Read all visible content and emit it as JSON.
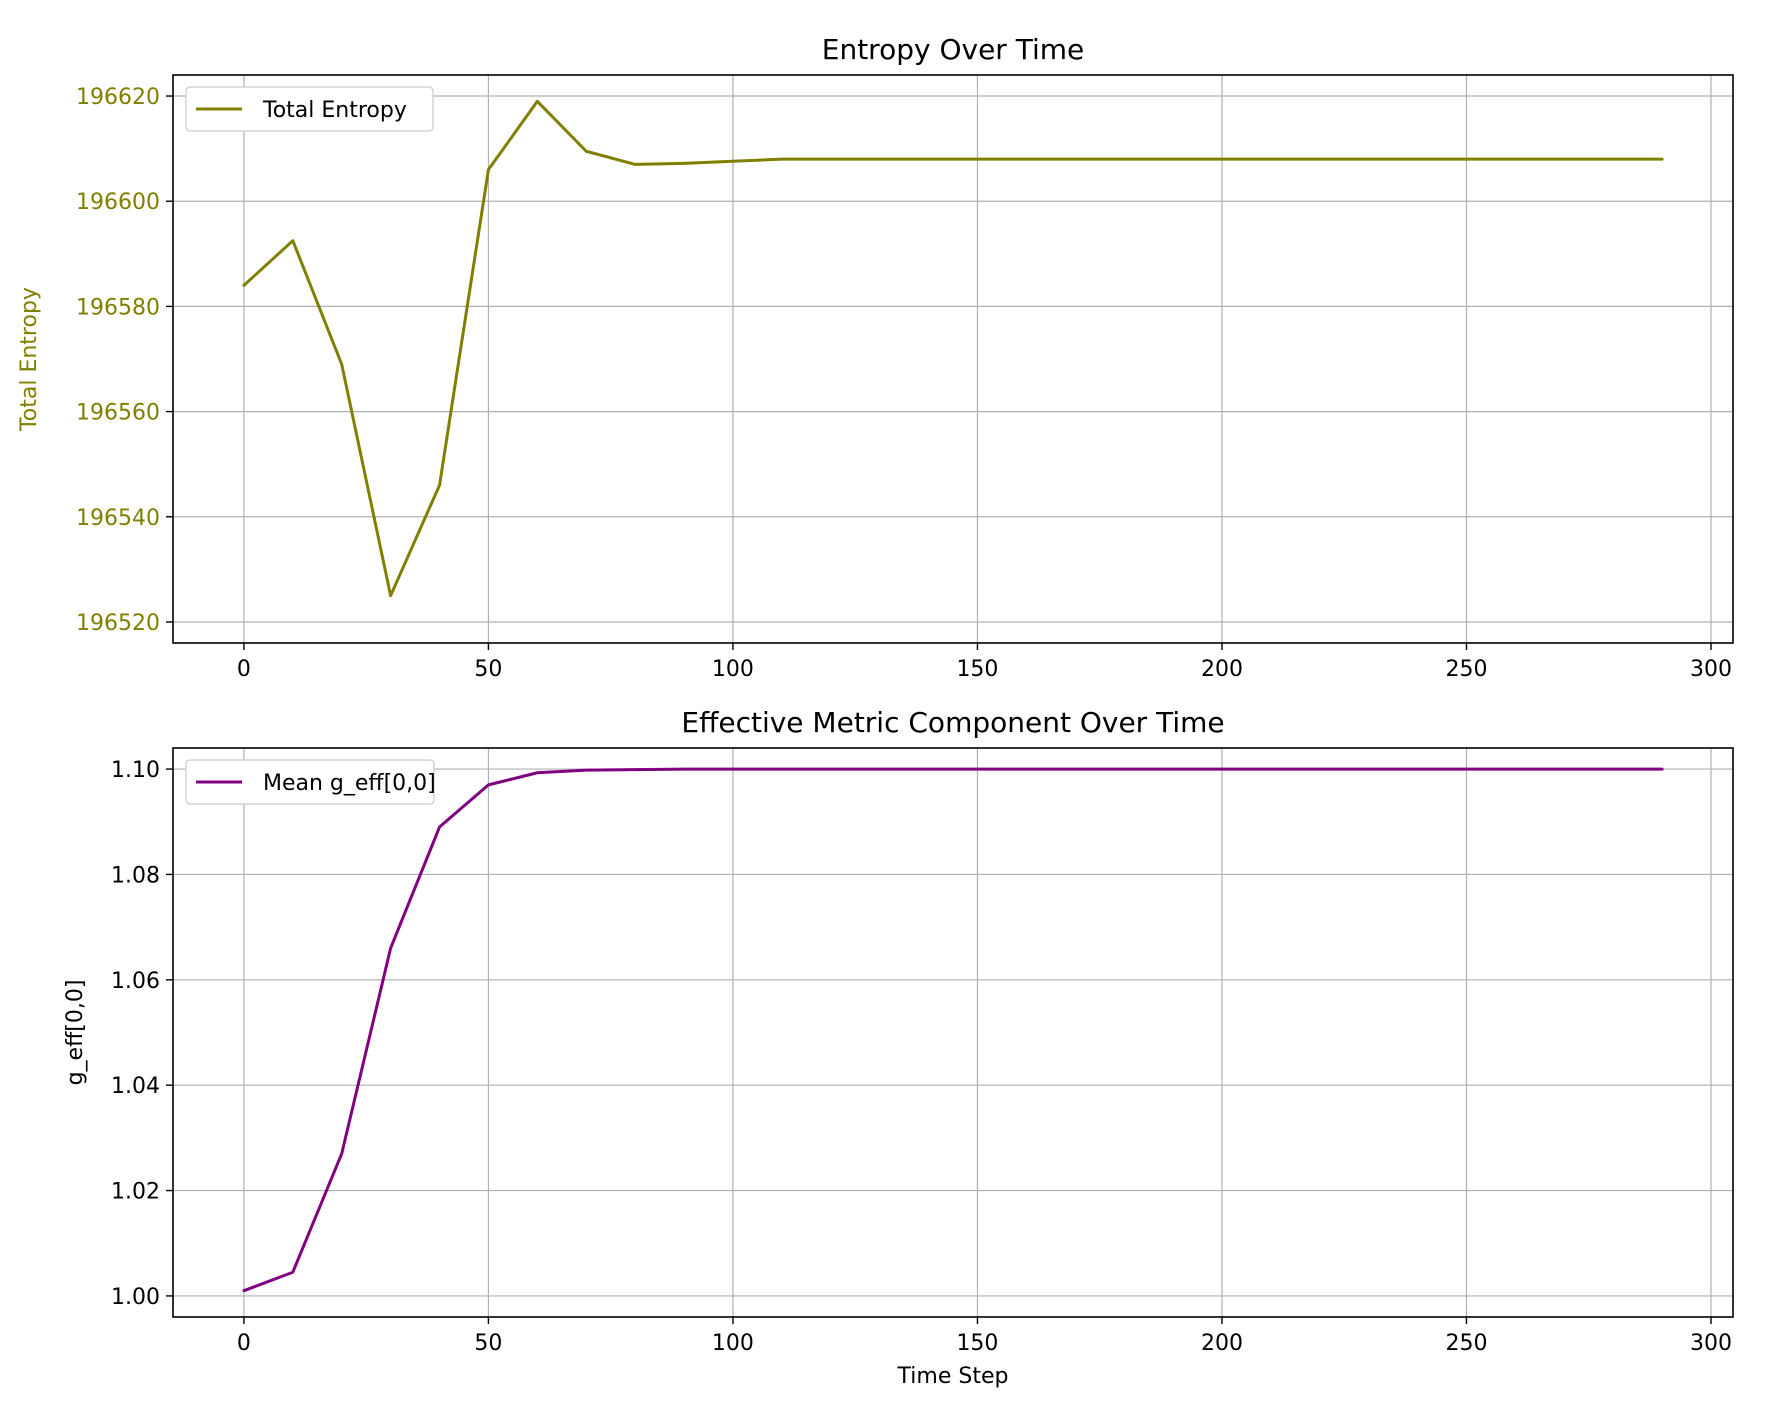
{
  "chart_data": [
    {
      "type": "line",
      "title": "Entropy Over Time",
      "xlabel": "",
      "ylabel": "Total Entropy",
      "xlim": [
        -14.5,
        304.5
      ],
      "ylim": [
        196516,
        196624
      ],
      "xticks": [
        0,
        50,
        100,
        150,
        200,
        250,
        300
      ],
      "xtick_labels": [
        "0",
        "50",
        "100",
        "150",
        "200",
        "250",
        "300"
      ],
      "yticks": [
        196520,
        196540,
        196560,
        196580,
        196600,
        196620
      ],
      "ytick_labels": [
        "196520",
        "196540",
        "196560",
        "196580",
        "196600",
        "196620"
      ],
      "grid": true,
      "legend": "top-left",
      "accent_color": "#808000",
      "series": [
        {
          "name": "Total Entropy",
          "color": "#808000",
          "x": [
            0,
            10,
            20,
            30,
            40,
            50,
            60,
            70,
            80,
            90,
            100,
            110,
            120,
            130,
            140,
            150,
            160,
            170,
            180,
            190,
            200,
            210,
            220,
            230,
            240,
            250,
            260,
            270,
            280,
            290
          ],
          "y": [
            196584,
            196592.5,
            196569,
            196525,
            196546,
            196606,
            196619,
            196609.5,
            196607,
            196607.2,
            196607.6,
            196608,
            196608,
            196608,
            196608,
            196608,
            196608,
            196608,
            196608,
            196608,
            196608,
            196608,
            196608,
            196608,
            196608,
            196608,
            196608,
            196608,
            196608,
            196608
          ]
        }
      ]
    },
    {
      "type": "line",
      "title": "Effective Metric Component Over Time",
      "xlabel": "Time Step",
      "ylabel": "g_eff[0,0]",
      "xlim": [
        -14.5,
        304.5
      ],
      "ylim": [
        0.996,
        1.104
      ],
      "xticks": [
        0,
        50,
        100,
        150,
        200,
        250,
        300
      ],
      "xtick_labels": [
        "0",
        "50",
        "100",
        "150",
        "200",
        "250",
        "300"
      ],
      "yticks": [
        1.0,
        1.02,
        1.04,
        1.06,
        1.08,
        1.1
      ],
      "ytick_labels": [
        "1.00",
        "1.02",
        "1.04",
        "1.06",
        "1.08",
        "1.10"
      ],
      "grid": true,
      "legend": "top-left",
      "series": [
        {
          "name": "Mean g_eff[0,0]",
          "color": "#800080",
          "x": [
            0,
            10,
            20,
            30,
            40,
            50,
            60,
            70,
            80,
            90,
            100,
            110,
            120,
            130,
            140,
            150,
            160,
            170,
            180,
            190,
            200,
            210,
            220,
            230,
            240,
            250,
            260,
            270,
            280,
            290
          ],
          "y": [
            1.001,
            1.0045,
            1.027,
            1.066,
            1.089,
            1.097,
            1.0993,
            1.0998,
            1.0999,
            1.1,
            1.1,
            1.1,
            1.1,
            1.1,
            1.1,
            1.1,
            1.1,
            1.1,
            1.1,
            1.1,
            1.1,
            1.1,
            1.1,
            1.1,
            1.1,
            1.1,
            1.1,
            1.1,
            1.1,
            1.1
          ]
        }
      ]
    }
  ]
}
